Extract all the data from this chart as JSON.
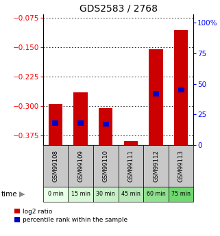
{
  "title": "GDS2583 / 2768",
  "samples": [
    "GSM99108",
    "GSM99109",
    "GSM99110",
    "GSM99111",
    "GSM99112",
    "GSM99113"
  ],
  "time_labels": [
    "0 min",
    "15 min",
    "30 min",
    "45 min",
    "60 min",
    "75 min"
  ],
  "log2_values": [
    -0.295,
    -0.265,
    -0.305,
    -0.39,
    -0.155,
    -0.105
  ],
  "percentile_values": [
    18,
    18,
    17,
    null,
    42,
    45
  ],
  "ylim_left": [
    -0.4,
    -0.065
  ],
  "ylim_right": [
    0,
    107
  ],
  "left_ticks": [
    -0.375,
    -0.3,
    -0.225,
    -0.15,
    -0.075
  ],
  "right_ticks": [
    0,
    25,
    50,
    75,
    100
  ],
  "bar_color": "#cc0000",
  "percentile_color": "#0000cc",
  "bar_width": 0.55,
  "grid_color": "#000000",
  "title_fontsize": 10,
  "tick_fontsize": 7.5,
  "sample_bg_color": "#c8c8c8",
  "time_bg_colors": [
    "#e8ffe8",
    "#d8f8d8",
    "#c8f0c8",
    "#b8e8b8",
    "#90e090",
    "#70d870"
  ],
  "legend_red_label": "log2 ratio",
  "legend_blue_label": "percentile rank within the sample"
}
